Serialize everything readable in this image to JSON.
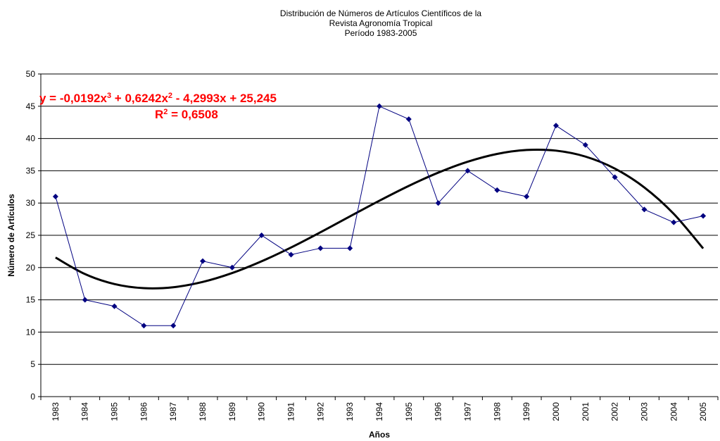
{
  "chart_data": {
    "type": "line",
    "title": [
      "Distribución de Números de Artículos Científicos de la",
      "Revista Agronomía Tropical",
      "Período 1983-2005"
    ],
    "x_label": "Años",
    "y_label": "Número de Artículos",
    "categories": [
      "1983",
      "1984",
      "1985",
      "1986",
      "1987",
      "1988",
      "1989",
      "1990",
      "1991",
      "1992",
      "1993",
      "1994",
      "1995",
      "1996",
      "1997",
      "1998",
      "1999",
      "2000",
      "2001",
      "2002",
      "2003",
      "2004",
      "2005"
    ],
    "series": [
      {
        "color": "#000080",
        "values": [
          31,
          15,
          14,
          11,
          11,
          21,
          20,
          25,
          22,
          23,
          23,
          45,
          43,
          30,
          35,
          32,
          31,
          42,
          39,
          34,
          29,
          27,
          28
        ]
      }
    ],
    "trendline": {
      "color": "#000000",
      "values": [
        21.55,
        18.99,
        17.45,
        16.81,
        16.95,
        17.77,
        19.15,
        20.97,
        23.11,
        25.47,
        27.93,
        30.36,
        32.66,
        34.71,
        36.4,
        37.61,
        38.22,
        38.12,
        37.2,
        35.34,
        32.42,
        28.33,
        22.96
      ]
    },
    "equation": {
      "color": "#ff0000",
      "lines": [
        [
          {
            "text": "y = -0,0192x"
          },
          {
            "text": "3",
            "sup": true
          },
          {
            "text": " + 0,6242x"
          },
          {
            "text": "2",
            "sup": true
          },
          {
            "text": " - 4,2993x + 25,245"
          }
        ],
        [
          {
            "text": "R"
          },
          {
            "text": "2",
            "sup": true
          },
          {
            "text": " = 0,6508"
          }
        ]
      ]
    },
    "ylim": [
      0,
      50
    ],
    "yticks": [
      0,
      5,
      10,
      15,
      20,
      25,
      30,
      35,
      40,
      45,
      50
    ],
    "grid": true
  }
}
